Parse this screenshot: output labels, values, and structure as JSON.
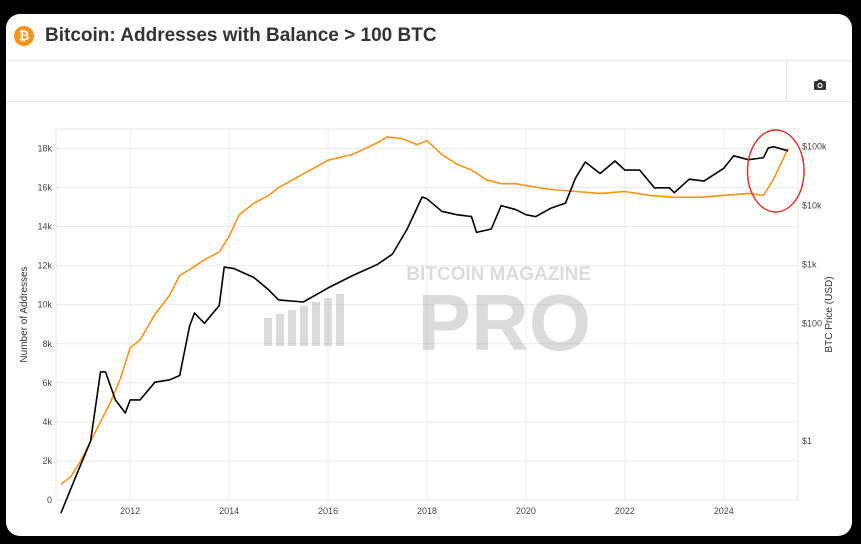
{
  "header": {
    "logo_glyph": "₿",
    "title": "Bitcoin: Addresses with Balance > 100 BTC"
  },
  "toolbar": {
    "camera_icon": "camera-icon"
  },
  "watermark": {
    "line1": "BITCOIN MAGAZINE",
    "line2": "PRO"
  },
  "colors": {
    "addresses": "#f7931a",
    "price": "#000000",
    "highlight": "#d9352b"
  },
  "chart_data": {
    "type": "line",
    "title": "Bitcoin: Addresses with Balance > 100 BTC",
    "xlabel": "",
    "ylabel": "Number of Addresses",
    "y2label": "BTC Price (USD)",
    "xlim": [
      2010.5,
      2025.5
    ],
    "ylim": [
      0,
      19000
    ],
    "y2lim_log10": [
      -1,
      5.3
    ],
    "y2scale": "log",
    "grid": true,
    "x_ticks": [
      "2012",
      "2014",
      "2016",
      "2018",
      "2020",
      "2022",
      "2024"
    ],
    "y_ticks": [
      "0",
      "2k",
      "4k",
      "6k",
      "8k",
      "10k",
      "12k",
      "14k",
      "16k",
      "18k"
    ],
    "y2_ticks": [
      "$1",
      "$100",
      "$1k",
      "$10k",
      "$100k"
    ],
    "series": [
      {
        "axis": "left",
        "color": "#f7931a",
        "x": [
          2010.6,
          2010.8,
          2011.0,
          2011.2,
          2011.4,
          2011.6,
          2011.8,
          2012.0,
          2012.2,
          2012.5,
          2012.8,
          2013.0,
          2013.2,
          2013.5,
          2013.8,
          2014.0,
          2014.2,
          2014.5,
          2014.8,
          2015.0,
          2015.5,
          2016.0,
          2016.5,
          2017.0,
          2017.2,
          2017.5,
          2017.8,
          2018.0,
          2018.3,
          2018.6,
          2018.9,
          2019.2,
          2019.5,
          2019.8,
          2020.0,
          2020.5,
          2021.0,
          2021.5,
          2022.0,
          2022.5,
          2023.0,
          2023.5,
          2024.0,
          2024.5,
          2024.8,
          2025.0,
          2025.3
        ],
        "values": [
          800,
          1200,
          2000,
          3000,
          4000,
          5000,
          6200,
          7800,
          8200,
          9500,
          10500,
          11500,
          11800,
          12300,
          12700,
          13500,
          14600,
          15200,
          15600,
          16000,
          16700,
          17400,
          17700,
          18300,
          18600,
          18500,
          18200,
          18400,
          17700,
          17200,
          16900,
          16400,
          16200,
          16200,
          16100,
          15900,
          15800,
          15700,
          15800,
          15600,
          15500,
          15500,
          15600,
          15700,
          15600,
          16400,
          18000
        ]
      },
      {
        "axis": "right",
        "color": "#000000",
        "x": [
          2010.6,
          2010.9,
          2011.2,
          2011.4,
          2011.5,
          2011.7,
          2011.9,
          2012.0,
          2012.2,
          2012.5,
          2012.8,
          2013.0,
          2013.2,
          2013.3,
          2013.5,
          2013.8,
          2013.9,
          2014.1,
          2014.5,
          2014.8,
          2015.0,
          2015.5,
          2016.0,
          2016.5,
          2017.0,
          2017.3,
          2017.6,
          2017.9,
          2018.0,
          2018.3,
          2018.6,
          2018.9,
          2019.0,
          2019.3,
          2019.5,
          2019.8,
          2020.0,
          2020.2,
          2020.5,
          2020.8,
          2021.0,
          2021.2,
          2021.5,
          2021.8,
          2022.0,
          2022.3,
          2022.6,
          2022.9,
          2023.0,
          2023.3,
          2023.6,
          2023.9,
          2024.0,
          2024.2,
          2024.5,
          2024.8,
          2024.9,
          2025.0,
          2025.3
        ],
        "values": [
          0.06,
          0.25,
          1.0,
          15,
          15,
          5,
          3,
          5,
          5,
          10,
          11,
          13,
          90,
          150,
          100,
          200,
          900,
          850,
          600,
          370,
          250,
          230,
          400,
          650,
          1000,
          1500,
          4000,
          14000,
          13000,
          8000,
          7000,
          6500,
          3500,
          4000,
          10000,
          8500,
          7000,
          6500,
          9000,
          11000,
          29000,
          55000,
          35000,
          57000,
          40000,
          40000,
          20000,
          20000,
          16500,
          28000,
          26000,
          38000,
          43000,
          70000,
          60000,
          65000,
          95000,
          100000,
          85000
        ]
      }
    ],
    "annotation": {
      "type": "ellipse",
      "color": "#d9352b",
      "x_range": [
        2024.6,
        2025.5
      ]
    }
  }
}
